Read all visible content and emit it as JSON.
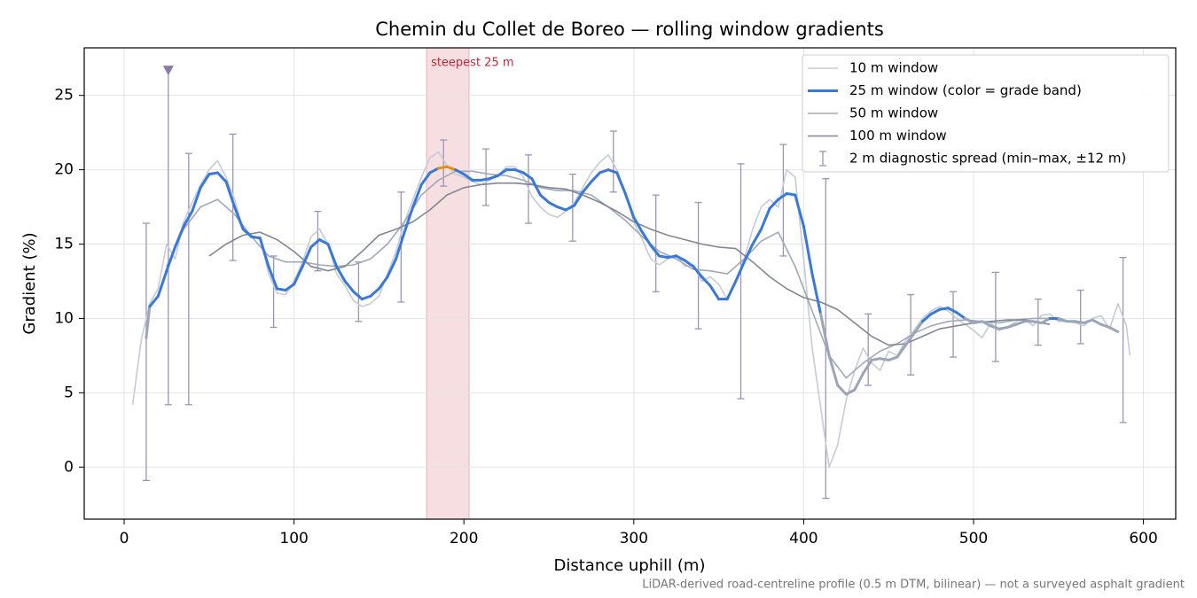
{
  "chart_data": {
    "type": "line",
    "title": "Chemin du Collet de Boreo — rolling window gradients",
    "xlabel": "Distance uphill (m)",
    "ylabel": "Gradient (%)",
    "footnote": "LiDAR-derived road-centreline profile (0.5 m DTM, bilinear) — not a surveyed asphalt gradient",
    "xlim": [
      -23.5,
      619
    ],
    "ylim": [
      -3.5,
      28.2
    ],
    "xticks": [
      0,
      100,
      200,
      300,
      400,
      500,
      600
    ],
    "yticks": [
      0,
      5,
      10,
      15,
      20,
      25
    ],
    "grid": true,
    "legend": "upper right",
    "highlight": {
      "label": "steepest 25 m",
      "x": [
        178,
        203
      ],
      "color": "#e8a0a8"
    },
    "series": [
      {
        "name": "10 m window",
        "color": "#c5ccd5",
        "x": [
          5,
          10,
          15,
          20,
          25,
          30,
          35,
          40,
          45,
          50,
          55,
          60,
          65,
          70,
          75,
          80,
          85,
          90,
          95,
          100,
          105,
          110,
          115,
          120,
          125,
          130,
          135,
          140,
          145,
          150,
          155,
          160,
          165,
          170,
          175,
          180,
          185,
          190,
          195,
          200,
          205,
          210,
          215,
          220,
          225,
          230,
          235,
          240,
          245,
          250,
          255,
          260,
          265,
          270,
          275,
          280,
          285,
          290,
          295,
          300,
          305,
          310,
          315,
          320,
          325,
          330,
          335,
          340,
          345,
          350,
          355,
          360,
          365,
          370,
          375,
          380,
          385,
          390,
          395,
          400,
          405,
          410,
          415,
          420,
          425,
          430,
          435,
          440,
          445,
          450,
          455,
          460,
          465,
          470,
          475,
          480,
          485,
          490,
          495,
          500,
          505,
          510,
          515,
          520,
          525,
          530,
          535,
          540,
          545,
          550,
          555,
          560,
          565,
          570,
          575,
          580,
          585,
          590,
          592
        ],
        "values": [
          4.2,
          8.5,
          11,
          12,
          15,
          14,
          16.5,
          17.8,
          19,
          20,
          20.6,
          19.5,
          18,
          16,
          15.4,
          15.5,
          13,
          11.7,
          11.6,
          12.5,
          13.8,
          15.5,
          16,
          15,
          13,
          12.2,
          11.2,
          10.8,
          11,
          11.5,
          13,
          14.5,
          16.5,
          18,
          19.5,
          20.8,
          21.2,
          20.3,
          19.7,
          19.5,
          19.2,
          19,
          19.3,
          19.6,
          20.2,
          20.2,
          19.5,
          18.2,
          17.5,
          17,
          16.8,
          17.2,
          17.8,
          18.8,
          19.8,
          20.5,
          21,
          20,
          18.5,
          16.5,
          15.3,
          14,
          13.6,
          14,
          14.3,
          13.5,
          13.6,
          12.5,
          12.8,
          12.3,
          11.3,
          12.5,
          14,
          16,
          17.5,
          18,
          17.5,
          20,
          19.5,
          14,
          8,
          4,
          0,
          1.5,
          4.5,
          6.5,
          8,
          7,
          6.5,
          7.8,
          7.5,
          8.5,
          9.2,
          10,
          10.5,
          10.8,
          10.5,
          10,
          9.6,
          9.2,
          8.7,
          9.7,
          9.2,
          9.4,
          9.8,
          10,
          9.5,
          10.2,
          10.3,
          9.8,
          9.8,
          9.7,
          9.5,
          10,
          10.2,
          9.3,
          11,
          9.5,
          7.5
        ],
        "width": 1.6
      },
      {
        "name": "25 m window (color = grade band)",
        "color": "#3a78d8",
        "width": 3,
        "band_colors": [
          {
            "below": 10,
            "color": "#9aa6b8"
          },
          {
            "above": 20,
            "color": "#e8900c"
          }
        ],
        "x": [
          13,
          15,
          20,
          25,
          30,
          35,
          40,
          45,
          50,
          55,
          60,
          65,
          70,
          75,
          80,
          85,
          90,
          95,
          100,
          105,
          110,
          115,
          120,
          125,
          130,
          135,
          140,
          145,
          150,
          155,
          160,
          165,
          170,
          175,
          180,
          185,
          190,
          195,
          200,
          205,
          210,
          215,
          220,
          225,
          230,
          235,
          240,
          245,
          250,
          255,
          260,
          265,
          270,
          275,
          280,
          285,
          290,
          295,
          300,
          305,
          310,
          315,
          320,
          325,
          330,
          335,
          340,
          345,
          350,
          355,
          360,
          365,
          370,
          375,
          380,
          385,
          390,
          395,
          400,
          405,
          410,
          415,
          420,
          425,
          430,
          435,
          440,
          445,
          450,
          455,
          460,
          465,
          470,
          475,
          480,
          485,
          490,
          495,
          500,
          505,
          510,
          515,
          520,
          525,
          530,
          535,
          540,
          545,
          550,
          555,
          560,
          565,
          570,
          575,
          580,
          585
        ],
        "values": [
          8.7,
          10.8,
          11.5,
          13.2,
          14.8,
          16.2,
          17.2,
          18.8,
          19.7,
          19.8,
          19.2,
          17.5,
          16,
          15.5,
          15.4,
          13.5,
          12,
          11.9,
          12.3,
          13.5,
          14.8,
          15.3,
          15,
          13.5,
          12.5,
          11.8,
          11.3,
          11.5,
          12,
          12.8,
          14,
          15.8,
          17.5,
          19,
          19.8,
          20.1,
          20.2,
          20,
          19.7,
          19.3,
          19.3,
          19.4,
          19.6,
          20,
          20,
          19.8,
          19.4,
          18.3,
          17.8,
          17.5,
          17.3,
          17.6,
          18.5,
          19.2,
          19.8,
          20,
          19.8,
          18.4,
          16.8,
          15.8,
          14.9,
          14.2,
          14.1,
          14.2,
          13.9,
          13.5,
          12.8,
          12.2,
          11.3,
          11.3,
          12.5,
          13.8,
          15,
          16,
          17.4,
          18,
          18.4,
          18.3,
          16.2,
          13,
          10.3,
          7.5,
          5.5,
          4.9,
          5.2,
          6.3,
          7.2,
          7.3,
          7.2,
          7.4,
          8.2,
          9,
          9.8,
          10.3,
          10.6,
          10.7,
          10.4,
          10,
          9.7,
          9.8,
          9.5,
          9.3,
          9.4,
          9.6,
          9.8,
          9.8,
          9.7,
          10,
          10,
          9.8,
          9.8,
          9.7,
          9.9,
          9.6,
          9.4,
          9.1
        ]
      },
      {
        "name": "50 m window",
        "color": "#a0a8b8",
        "width": 1.6,
        "x": [
          25,
          35,
          45,
          55,
          65,
          75,
          85,
          95,
          105,
          115,
          125,
          135,
          145,
          155,
          165,
          175,
          185,
          195,
          205,
          215,
          225,
          235,
          245,
          255,
          265,
          275,
          285,
          295,
          305,
          315,
          325,
          335,
          345,
          355,
          365,
          375,
          385,
          395,
          405,
          415,
          425,
          435,
          445,
          455,
          465,
          475,
          485,
          495,
          505,
          515,
          525,
          535,
          545,
          555,
          565
        ],
        "values": [
          13.5,
          16,
          17.5,
          18,
          17,
          15.5,
          14.2,
          13.8,
          13.8,
          13.6,
          13.5,
          13.6,
          14,
          15,
          16.5,
          18.3,
          19.3,
          19.9,
          19.9,
          19.7,
          19.6,
          19.3,
          18.8,
          18.6,
          18.6,
          18.3,
          17.5,
          16.6,
          15.5,
          14.5,
          14,
          13.3,
          13.2,
          13,
          14,
          15.2,
          15.8,
          13.5,
          10.5,
          7.5,
          6,
          7,
          7.8,
          8.3,
          9,
          9.5,
          9.8,
          9.9,
          9.8,
          9.7,
          9.9,
          10,
          10,
          9.8,
          9.7
        ]
      },
      {
        "name": "100 m window",
        "color": "#808694",
        "width": 1.6,
        "x": [
          50,
          60,
          70,
          80,
          90,
          100,
          110,
          120,
          130,
          140,
          150,
          160,
          170,
          180,
          190,
          200,
          210,
          220,
          230,
          240,
          250,
          260,
          270,
          280,
          290,
          300,
          310,
          320,
          330,
          340,
          350,
          360,
          370,
          380,
          390,
          400,
          410,
          420,
          430,
          440,
          450,
          460,
          470,
          480,
          490,
          500,
          510,
          520,
          530,
          540,
          545
        ],
        "values": [
          14.2,
          15,
          15.6,
          15.8,
          15.3,
          14.5,
          13.5,
          13.2,
          13.5,
          14.5,
          15.6,
          16,
          16.5,
          17.3,
          18.3,
          18.8,
          19,
          19.1,
          19.1,
          19,
          18.8,
          18.7,
          18.3,
          17.8,
          17.2,
          16.5,
          16,
          15.6,
          15.3,
          15,
          14.8,
          14.7,
          13.8,
          12.8,
          12,
          11.4,
          11.1,
          10.6,
          9.7,
          8.8,
          8.2,
          8.3,
          8.8,
          9.3,
          9.5,
          9.7,
          9.8,
          9.9,
          9.9,
          9.7,
          9.6
        ]
      }
    ],
    "spread": {
      "name": "2 m diagnostic spread (min–max, ±12 m)",
      "color": "#9a94b8",
      "x": [
        13,
        26,
        38,
        64,
        88,
        114,
        138,
        163,
        188,
        213,
        238,
        264,
        288,
        313,
        338,
        363,
        388,
        413,
        438,
        463,
        488,
        513,
        538,
        563,
        588
      ],
      "low": [
        -0.9,
        4.2,
        4.2,
        13.9,
        9.4,
        13.2,
        9.8,
        11.1,
        18.9,
        17.6,
        16.4,
        15.2,
        18.5,
        11.8,
        9.3,
        4.6,
        14.2,
        -2.1,
        5.5,
        6.2,
        7.4,
        7.1,
        8.2,
        8.3,
        3
      ],
      "high": [
        16.4,
        26.8,
        21.1,
        22.4,
        14.2,
        17.2,
        13.8,
        18.5,
        22,
        21.4,
        21,
        19.7,
        22.6,
        18.3,
        17.8,
        20.4,
        21.7,
        19.4,
        10.3,
        11.6,
        11.8,
        13.1,
        11.3,
        11.9,
        14.1
      ]
    },
    "marker": {
      "x": 26,
      "y": 26.7,
      "color": "#8a7aa8"
    }
  }
}
